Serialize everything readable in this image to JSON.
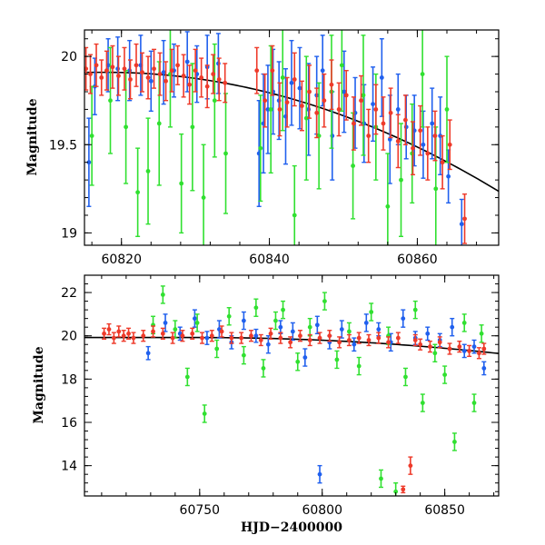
{
  "chart_data": [
    {
      "id": "top",
      "type": "scatter",
      "title": "",
      "xlabel": "",
      "ylabel": "Magnitude",
      "xlim": [
        60815,
        60871
      ],
      "ylim": [
        20.15,
        18.93
      ],
      "y_inverted": true,
      "xticks": [
        60820,
        60840,
        60860
      ],
      "xtick_labels": [
        "60820",
        "60840",
        "60860"
      ],
      "yticks": [
        19,
        19.5,
        20
      ],
      "ytick_labels": [
        "19",
        "19.5",
        "20"
      ],
      "grid": false,
      "model_curve": {
        "t0": 60818,
        "m0": 19.91,
        "a": 0.00024,
        "p": 2
      },
      "series": [
        {
          "color": "#2060ee",
          "x": [
            60815.6,
            60816.4,
            60818.2,
            60819.5,
            60821.1,
            60822.6,
            60824.0,
            60825.7,
            60827.1,
            60828.9,
            60830.2,
            60831.6,
            60833.1,
            60838.6,
            60839.2,
            60839.8,
            60840.5,
            60841.3,
            60842.2,
            60843.0,
            60844.1,
            60845.3,
            60846.4,
            60847.2,
            60848.5,
            60850.1,
            60851.6,
            60852.8,
            60854.0,
            60855.2,
            60856.3,
            60857.4,
            60858.5,
            60859.6,
            60860.8,
            60862.0,
            60863.1,
            60864.2,
            60866.0
          ],
          "y": [
            19.4,
            19.83,
            19.95,
            19.93,
            19.92,
            19.95,
            19.86,
            19.91,
            19.92,
            19.97,
            19.9,
            19.94,
            19.96,
            19.45,
            19.62,
            19.7,
            19.8,
            19.75,
            19.66,
            19.85,
            19.82,
            19.7,
            19.78,
            19.92,
            19.55,
            19.8,
            19.68,
            19.62,
            19.73,
            19.88,
            19.53,
            19.7,
            19.6,
            19.58,
            19.5,
            19.62,
            19.55,
            19.32,
            19.05
          ],
          "err": [
            0.25,
            0.16,
            0.15,
            0.18,
            0.17,
            0.17,
            0.17,
            0.18,
            0.15,
            0.17,
            0.16,
            0.18,
            0.17,
            0.3,
            0.28,
            0.25,
            0.24,
            0.22,
            0.27,
            0.24,
            0.23,
            0.26,
            0.22,
            0.2,
            0.25,
            0.23,
            0.2,
            0.22,
            0.21,
            0.22,
            0.25,
            0.2,
            0.18,
            0.2,
            0.19,
            0.2,
            0.22,
            0.15,
            0.14
          ]
        },
        {
          "color": "#30e030",
          "x": [
            60816.0,
            60818.5,
            60820.6,
            60822.2,
            60823.6,
            60825.1,
            60826.6,
            60828.1,
            60829.6,
            60831.1,
            60832.6,
            60834.1,
            60838.8,
            60840.2,
            60841.8,
            60843.4,
            60845.0,
            60846.7,
            60848.4,
            60849.8,
            60851.3,
            60852.7,
            60854.4,
            60856.0,
            60857.8,
            60859.3,
            60860.7,
            60862.5,
            60864.0
          ],
          "y": [
            19.55,
            19.75,
            19.6,
            19.23,
            19.35,
            19.62,
            19.9,
            19.28,
            19.6,
            19.2,
            19.75,
            19.45,
            19.48,
            19.7,
            19.88,
            19.1,
            19.65,
            19.55,
            19.8,
            19.95,
            19.38,
            19.78,
            19.6,
            19.15,
            19.3,
            19.45,
            19.9,
            19.25,
            19.7
          ],
          "err": [
            0.28,
            0.3,
            0.32,
            0.25,
            0.3,
            0.35,
            0.3,
            0.28,
            0.36,
            0.3,
            0.32,
            0.34,
            0.3,
            0.36,
            0.3,
            0.28,
            0.35,
            0.3,
            0.32,
            0.26,
            0.3,
            0.34,
            0.3,
            0.3,
            0.32,
            0.28,
            0.3,
            0.35,
            0.3
          ]
        },
        {
          "color": "#ee3a2a",
          "x": [
            60815.2,
            60815.8,
            60816.6,
            60817.3,
            60818.0,
            60818.8,
            60819.6,
            60820.4,
            60821.2,
            60822.0,
            60822.8,
            60823.6,
            60824.4,
            60825.2,
            60826.0,
            60826.8,
            60827.6,
            60828.4,
            60829.2,
            60830.0,
            60830.8,
            60831.6,
            60832.4,
            60833.2,
            60834.0,
            60838.3,
            60839.4,
            60840.4,
            60841.4,
            60842.4,
            60843.4,
            60844.4,
            60845.4,
            60846.4,
            60847.4,
            60848.4,
            60849.4,
            60850.4,
            60851.4,
            60852.4,
            60853.4,
            60854.4,
            60855.4,
            60856.4,
            60857.4,
            60858.4,
            60859.4,
            60860.4,
            60861.4,
            60862.4,
            60863.4,
            60864.4,
            60866.4
          ],
          "y": [
            19.93,
            19.9,
            19.95,
            19.88,
            19.92,
            19.94,
            19.89,
            19.93,
            19.87,
            19.95,
            19.91,
            19.88,
            19.93,
            19.9,
            19.86,
            19.92,
            19.95,
            19.89,
            19.84,
            19.92,
            19.88,
            19.83,
            19.9,
            19.87,
            19.85,
            19.92,
            19.75,
            19.92,
            19.7,
            19.74,
            19.87,
            19.72,
            19.8,
            19.68,
            19.75,
            19.84,
            19.7,
            19.78,
            19.62,
            19.75,
            19.55,
            19.7,
            19.62,
            19.68,
            19.52,
            19.64,
            19.48,
            19.58,
            19.45,
            19.55,
            19.4,
            19.5,
            19.08
          ],
          "err": [
            0.12,
            0.11,
            0.12,
            0.1,
            0.11,
            0.12,
            0.11,
            0.12,
            0.11,
            0.12,
            0.11,
            0.12,
            0.11,
            0.12,
            0.11,
            0.12,
            0.11,
            0.12,
            0.11,
            0.12,
            0.11,
            0.12,
            0.11,
            0.12,
            0.11,
            0.13,
            0.15,
            0.14,
            0.15,
            0.14,
            0.15,
            0.14,
            0.15,
            0.14,
            0.15,
            0.14,
            0.15,
            0.14,
            0.15,
            0.14,
            0.15,
            0.14,
            0.15,
            0.14,
            0.15,
            0.14,
            0.15,
            0.14,
            0.15,
            0.14,
            0.15,
            0.14,
            0.14
          ]
        }
      ]
    },
    {
      "id": "bottom",
      "type": "scatter",
      "title": "",
      "xlabel": "HJD−2400000",
      "ylabel": "Magnitude",
      "xlim": [
        60703,
        60872
      ],
      "ylim": [
        22.8,
        12.6
      ],
      "y_inverted": true,
      "xticks": [
        60750,
        60800,
        60850
      ],
      "xtick_labels": [
        "60750",
        "60800",
        "60850"
      ],
      "yticks": [
        14,
        16,
        18,
        20,
        22
      ],
      "ytick_labels": [
        "14",
        "16",
        "18",
        "20",
        "22"
      ],
      "grid": false,
      "model_curve": {
        "t0": 60750,
        "m0": 19.92,
        "a": 4.95e-05,
        "p": 2
      },
      "series": [
        {
          "color": "#2060ee",
          "x": [
            60729,
            60736,
            60742,
            60748,
            60753,
            60758,
            60763,
            60768,
            60773,
            60778,
            60783,
            60788,
            60793,
            60798,
            60799,
            60803,
            60808,
            60813,
            60818,
            60823,
            60828,
            60833,
            60838,
            60843,
            60848,
            60853,
            60858,
            60862,
            60866
          ],
          "y": [
            19.2,
            20.6,
            20.1,
            20.8,
            19.9,
            20.3,
            19.7,
            20.7,
            20.0,
            19.6,
            20.4,
            20.2,
            19.0,
            20.5,
            13.6,
            19.7,
            20.3,
            19.6,
            20.6,
            20.3,
            19.7,
            20.8,
            19.9,
            20.1,
            19.8,
            20.4,
            19.3,
            19.5,
            18.5
          ],
          "err": [
            0.3,
            0.4,
            0.3,
            0.4,
            0.3,
            0.4,
            0.3,
            0.4,
            0.3,
            0.4,
            0.3,
            0.4,
            0.4,
            0.4,
            0.4,
            0.3,
            0.4,
            0.3,
            0.4,
            0.3,
            0.4,
            0.4,
            0.3,
            0.3,
            0.3,
            0.4,
            0.3,
            0.3,
            0.3
          ]
        },
        {
          "color": "#30e030",
          "x": [
            60731,
            60735,
            60740,
            60745,
            60749,
            60752,
            60757,
            60762,
            60768,
            60773,
            60776,
            60781,
            60784,
            60790,
            60795,
            60801,
            60806,
            60811,
            60815,
            60820,
            60824,
            60827,
            60830,
            60834,
            60838,
            60841,
            60846,
            60850,
            60854,
            60858,
            60862,
            60865
          ],
          "y": [
            20.5,
            21.9,
            20.3,
            18.1,
            20.6,
            16.4,
            19.4,
            20.9,
            19.1,
            21.3,
            18.5,
            20.7,
            21.2,
            18.8,
            20.4,
            21.6,
            18.9,
            20.2,
            18.6,
            21.1,
            13.4,
            20.0,
            12.8,
            18.1,
            21.2,
            16.9,
            19.2,
            18.2,
            15.1,
            20.6,
            16.9,
            20.1
          ],
          "err": [
            0.4,
            0.4,
            0.4,
            0.4,
            0.4,
            0.4,
            0.4,
            0.4,
            0.4,
            0.4,
            0.4,
            0.4,
            0.4,
            0.4,
            0.4,
            0.4,
            0.4,
            0.4,
            0.4,
            0.4,
            0.4,
            0.4,
            0.4,
            0.4,
            0.4,
            0.4,
            0.4,
            0.4,
            0.4,
            0.4,
            0.4,
            0.4
          ]
        },
        {
          "color": "#ee3a2a",
          "x": [
            60711,
            60713,
            60715,
            60717,
            60719,
            60721,
            60723,
            60727,
            60731,
            60735,
            60739,
            60743,
            60747,
            60751,
            60755,
            60759,
            60763,
            60767,
            60771,
            60775,
            60779,
            60783,
            60787,
            60791,
            60795,
            60799,
            60803,
            60807,
            60811,
            60815,
            60819,
            60823,
            60827,
            60831,
            60833,
            60836,
            60838,
            60840,
            60844,
            60848,
            60852,
            60856,
            60860,
            60864,
            60866
          ],
          "y": [
            20.1,
            20.3,
            19.9,
            20.2,
            20.0,
            20.1,
            19.9,
            20.0,
            20.2,
            20.1,
            19.9,
            20.0,
            20.1,
            19.9,
            20.0,
            20.2,
            19.9,
            19.9,
            20.0,
            19.8,
            20.1,
            19.9,
            19.7,
            20.0,
            19.8,
            19.9,
            20.0,
            19.7,
            19.8,
            19.9,
            19.8,
            19.9,
            19.7,
            19.9,
            12.9,
            14.0,
            19.8,
            19.6,
            19.5,
            19.7,
            19.4,
            19.5,
            19.3,
            19.2,
            19.4
          ],
          "err": [
            0.25,
            0.25,
            0.25,
            0.25,
            0.25,
            0.25,
            0.25,
            0.25,
            0.25,
            0.25,
            0.25,
            0.25,
            0.25,
            0.25,
            0.25,
            0.25,
            0.25,
            0.25,
            0.25,
            0.25,
            0.25,
            0.25,
            0.25,
            0.25,
            0.25,
            0.25,
            0.25,
            0.25,
            0.25,
            0.25,
            0.25,
            0.25,
            0.25,
            0.25,
            0.15,
            0.4,
            0.25,
            0.25,
            0.25,
            0.25,
            0.25,
            0.25,
            0.25,
            0.25,
            0.25
          ]
        }
      ]
    }
  ]
}
